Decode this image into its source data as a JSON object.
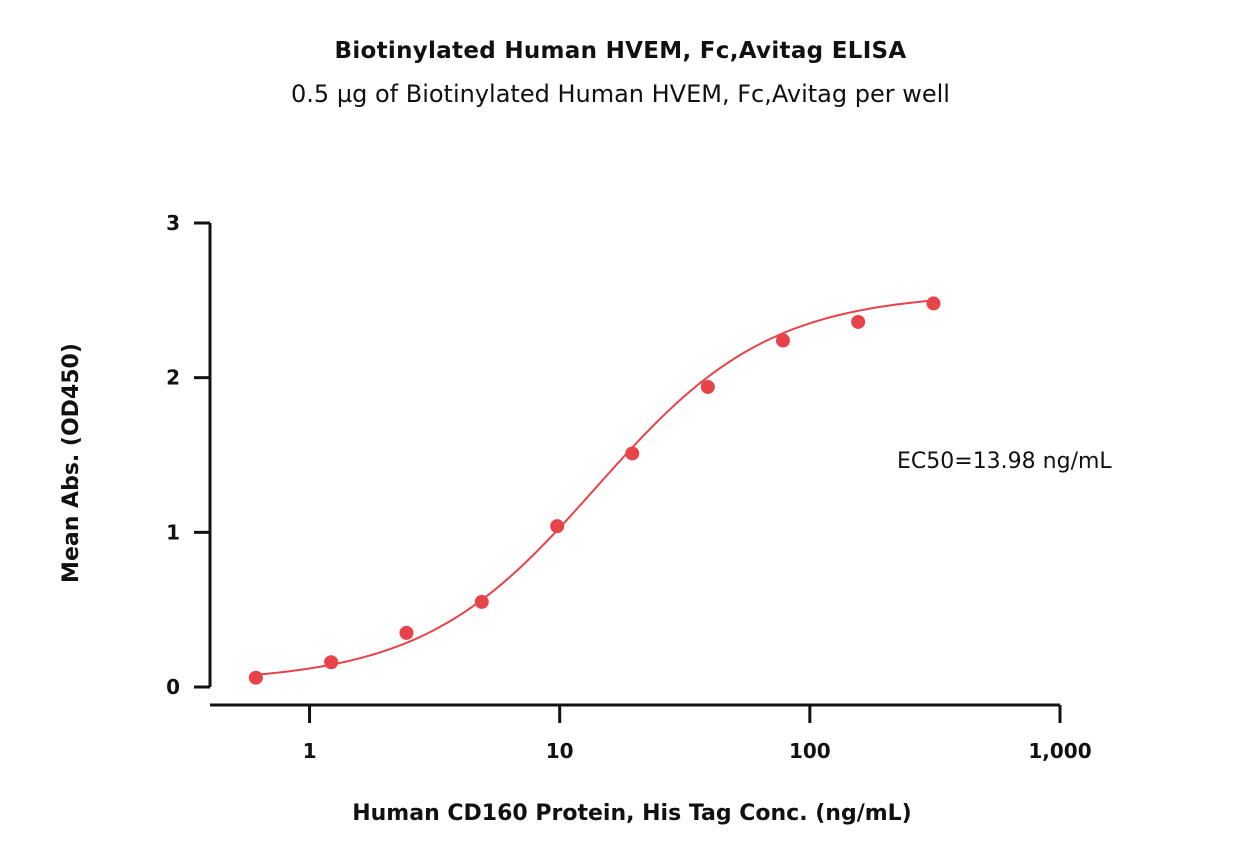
{
  "chart_data": {
    "type": "scatter",
    "title": "Biotinylated Human HVEM, Fc,Avitag ELISA",
    "subtitle": "0.5 µg of Biotinylated Human HVEM, Fc,Avitag per well",
    "xlabel": "Human CD160 Protein, His Tag Conc. (ng/mL)",
    "ylabel": "Mean Abs. (OD450)",
    "x_scale": "log",
    "xlim": [
      0.4,
      1000
    ],
    "ylim": [
      0,
      3
    ],
    "x_ticks": [
      1,
      10,
      100,
      1000
    ],
    "x_tick_labels": [
      "1",
      "10",
      "100",
      "1,000"
    ],
    "y_ticks": [
      0,
      1,
      2,
      3
    ],
    "y_tick_labels": [
      "0",
      "1",
      "2",
      "3"
    ],
    "grid": false,
    "series": [
      {
        "x": [
          0.61,
          1.22,
          2.44,
          4.88,
          9.77,
          19.5,
          39.1,
          78.1,
          156,
          312
        ],
        "y": [
          0.06,
          0.16,
          0.35,
          0.55,
          1.04,
          1.51,
          1.94,
          2.24,
          2.36,
          2.48
        ],
        "color": "#e8434a",
        "fit": "4PL",
        "fit_params": {
          "bottom": 0.03,
          "top": 2.55,
          "ec50": 13.98,
          "hill": 1.25
        }
      }
    ],
    "annotations": [
      {
        "text": "EC50=13.98 ng/mL"
      }
    ]
  }
}
